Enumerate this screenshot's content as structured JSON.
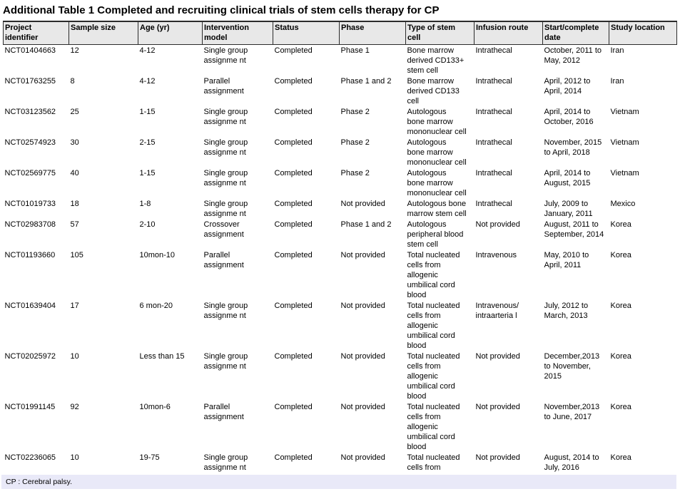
{
  "page": {
    "title": "Additional Table 1 Completed and recruiting clinical trials of stem cells therapy for CP",
    "footnote": "CP : Cerebral palsy."
  },
  "colors": {
    "header_bg": "#e8e8e8",
    "footnote_bg": "#e9e9f8",
    "border": "#2b2b2b",
    "text": "#000000"
  },
  "table": {
    "columns": [
      "Project\nidentifier",
      "Sample size",
      "Age (yr)",
      "Intervention\nmodel",
      "Status",
      "Phase",
      "Type of stem\ncell",
      "Infusion route",
      "Start/complete\ndate",
      "Study location"
    ],
    "rows": [
      [
        "NCT01404663",
        "12",
        "4-12",
        "Single group\nassignme nt",
        "Completed",
        "Phase 1",
        "Bone marrow\nderived CD133+\nstem cell",
        "Intrathecal",
        "October, 2011 to\nMay, 2012",
        "Iran"
      ],
      [
        "NCT01763255",
        "8",
        "4-12",
        "Parallel\nassignment",
        "Completed",
        "Phase 1 and 2",
        "Bone marrow\nderived CD133\ncell",
        "Intrathecal",
        "April, 2012 to\nApril, 2014",
        "Iran"
      ],
      [
        "NCT03123562",
        "25",
        "1-15",
        "Single group\nassignme nt",
        "Completed",
        "Phase 2",
        "Autologous\nbone marrow\nmononuclear cell",
        "Intrathecal",
        "April, 2014 to\nOctober, 2016",
        "Vietnam"
      ],
      [
        "NCT02574923",
        "30",
        "2-15",
        "Single group\nassignme nt",
        "Completed",
        "Phase 2",
        "Autologous\nbone marrow\nmononuclear cell",
        "Intrathecal",
        "November, 2015\nto April, 2018",
        "Vietnam"
      ],
      [
        "NCT02569775",
        "40",
        "1-15",
        "Single group\nassignme nt",
        "Completed",
        "Phase 2",
        "Autologous\nbone marrow\nmononuclear cell",
        "Intrathecal",
        "April, 2014 to\nAugust, 2015",
        "Vietnam"
      ],
      [
        "NCT01019733",
        "18",
        "1-8",
        "Single group\nassignme nt",
        "Completed",
        "Not provided",
        "Autologous bone\nmarrow stem cell",
        "Intrathecal",
        "July, 2009 to\nJanuary, 2011",
        "Mexico"
      ],
      [
        "NCT02983708",
        "57",
        "2-10",
        "Crossover\nassignment",
        "Completed",
        "Phase 1 and 2",
        "Autologous\nperipheral blood\nstem cell",
        "Not provided",
        "August, 2011 to\nSeptember, 2014",
        "Korea"
      ],
      [
        "NCT01193660",
        "105",
        "10mon-10",
        "Parallel\nassignment",
        "Completed",
        "Not provided",
        "Total nucleated\ncells from\nallogenic\numbilical cord\nblood",
        "Intravenous",
        "May, 2010 to\nApril, 2011",
        "Korea"
      ],
      [
        "NCT01639404",
        "17",
        "6 mon-20",
        "Single group\nassignme nt",
        "Completed",
        "Not provided",
        "Total nucleated\ncells from\nallogenic\numbilical cord\nblood",
        "Intravenous/\nintraarteria l",
        "July, 2012 to\nMarch, 2013",
        "Korea"
      ],
      [
        "NCT02025972",
        "10",
        "Less than 15",
        "Single group\nassignme nt",
        "Completed",
        "Not provided",
        "Total nucleated\ncells from\nallogenic\numbilical cord\nblood",
        "Not provided",
        "December,2013\nto November,\n2015",
        "Korea"
      ],
      [
        "NCT01991145",
        "92",
        "10mon-6",
        "Parallel\nassignment",
        "Completed",
        "Not provided",
        "Total nucleated\ncells from\nallogenic\numbilical cord\nblood",
        "Not provided",
        "November,2013\nto June, 2017",
        "Korea"
      ],
      [
        "NCT02236065",
        "10",
        "19-75",
        "Single group\nassignme nt",
        "Completed",
        "Not provided",
        "Total nucleated\ncells from",
        "Not provided",
        "August, 2014 to\nJuly, 2016",
        "Korea"
      ]
    ]
  }
}
